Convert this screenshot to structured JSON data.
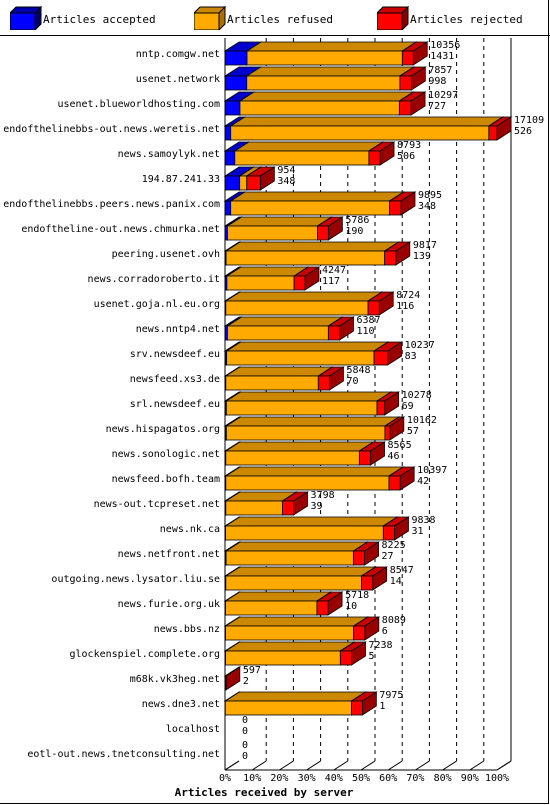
{
  "legend": {
    "accepted": {
      "label": "Articles accepted",
      "color": "#0000ff"
    },
    "refused": {
      "label": "Articles refused",
      "color": "#ffaa00"
    },
    "rejected": {
      "label": "Articles rejected",
      "color": "#ff0000"
    }
  },
  "chart_data": {
    "type": "bar",
    "orientation": "horizontal-stacked-percent",
    "xlabel": "Articles received by server",
    "xlim": [
      0,
      100
    ],
    "x_ticks": [
      "0%",
      "10%",
      "20%",
      "30%",
      "40%",
      "50%",
      "60%",
      "70%",
      "80%",
      "90%",
      "100%"
    ],
    "grid": "vertical dashed",
    "legend_position": "top",
    "series_colors": {
      "accepted": "#0000ff",
      "refused": "#ffaa00",
      "rejected": "#ff0000"
    },
    "categories": [
      "nntp.comgw.net",
      "usenet.network",
      "usenet.blueworldhosting.com",
      "endofthelinebbs-out.news.weretis.net",
      "news.samoylyk.net",
      "194.87.241.33",
      "endofthelinebbs.peers.news.panix.com",
      "endoftheline-out.news.chmurka.net",
      "peering.usenet.ovh",
      "news.corradoroberto.it",
      "usenet.goja.nl.eu.org",
      "news.nntp4.net",
      "srv.newsdeef.eu",
      "newsfeed.xs3.de",
      "srl.newsdeef.eu",
      "news.hispagatos.org",
      "news.sonologic.net",
      "newsfeed.bofh.team",
      "news-out.tcpreset.net",
      "news.nk.ca",
      "news.netfront.net",
      "outgoing.news.lysator.liu.se",
      "news.furie.org.uk",
      "news.bbs.nz",
      "glockenspiel.complete.org",
      "m68k.vk3heg.net",
      "news.dne3.net",
      "localhost",
      "eotl-out.news.tnetconsulting.net"
    ],
    "labels_top": [
      "10356",
      "7857",
      "10297",
      "17109",
      "8793",
      "954",
      "9895",
      "5786",
      "9817",
      "4247",
      "8724",
      "6387",
      "10237",
      "5848",
      "10278",
      "10162",
      "8565",
      "10397",
      "3798",
      "9838",
      "8225",
      "8547",
      "5718",
      "8089",
      "7238",
      "597",
      "7975",
      "0",
      "0"
    ],
    "labels_bottom": [
      "1431",
      "998",
      "727",
      "526",
      "506",
      "348",
      "348",
      "190",
      "139",
      "117",
      "116",
      "110",
      "83",
      "70",
      "69",
      "57",
      "46",
      "42",
      "39",
      "31",
      "27",
      "14",
      "10",
      "6",
      "5",
      "2",
      "1",
      "0",
      "0"
    ],
    "series": [
      {
        "name": "Articles accepted",
        "values": [
          8.1,
          8.0,
          5.5,
          2.1,
          3.6,
          5.4,
          2.1,
          0.9,
          0.4,
          0.7,
          0.3,
          0.9,
          0.6,
          0.3,
          0.5,
          0.5,
          0.3,
          0.3,
          0.3,
          0.2,
          0.4,
          0.3,
          0.2,
          0.2,
          0.2,
          0.2,
          0.1,
          0,
          0
        ]
      },
      {
        "name": "Articles refused",
        "values": [
          57.1,
          56.3,
          58.6,
          94.9,
          49.3,
          2.6,
          58.4,
          33.1,
          58.3,
          24.7,
          52.3,
          37.1,
          54.2,
          34.0,
          55.4,
          58.3,
          49.1,
          60.0,
          20.8,
          58.0,
          46.8,
          49.9,
          33.6,
          47.1,
          42.2,
          0,
          46.4,
          0,
          0
        ]
      },
      {
        "name": "Articles rejected",
        "values": [
          4.0,
          4.2,
          4.3,
          3.0,
          4.1,
          5.0,
          4.2,
          4.0,
          4.1,
          4.0,
          4.1,
          4.1,
          5.0,
          4.1,
          2.8,
          1.8,
          4.1,
          4.1,
          4.1,
          4.1,
          4.1,
          4.1,
          4.1,
          4.1,
          4.1,
          0.1,
          4.0,
          0,
          0
        ]
      }
    ]
  }
}
